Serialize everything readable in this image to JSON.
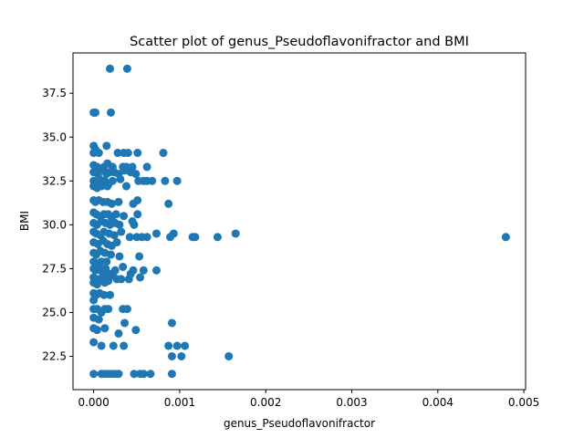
{
  "chart_data": {
    "type": "scatter",
    "title": "Scatter plot of genus_Pseudoflavonifractor and BMI",
    "xlabel": "genus_Pseudoflavonifractor",
    "ylabel": "BMI",
    "xlim": [
      -0.00024,
      0.00502
    ],
    "ylim": [
      20.6,
      39.8
    ],
    "x_ticks": [
      0.0,
      0.001,
      0.002,
      0.003,
      0.004,
      0.005
    ],
    "x_tick_labels": [
      "0.000",
      "0.001",
      "0.002",
      "0.003",
      "0.004",
      "0.005"
    ],
    "y_ticks": [
      22.5,
      25.0,
      27.5,
      30.0,
      32.5,
      35.0,
      37.5
    ],
    "y_tick_labels": [
      "22.5",
      "25.0",
      "27.5",
      "30.0",
      "32.5",
      "35.0",
      "37.5"
    ],
    "grid": false,
    "marker_color": "#1f77b4",
    "points": [
      [
        0.00019,
        38.9
      ],
      [
        0.00039,
        38.9
      ],
      [
        0.0,
        36.4
      ],
      [
        1e-05,
        36.4
      ],
      [
        2e-05,
        36.4
      ],
      [
        0.0002,
        36.4
      ],
      [
        0.0,
        34.5
      ],
      [
        2e-05,
        34.3
      ],
      [
        0.00015,
        34.5
      ],
      [
        0.0,
        34.1
      ],
      [
        6e-05,
        34.1
      ],
      [
        0.00028,
        34.1
      ],
      [
        0.00035,
        34.1
      ],
      [
        0.0004,
        34.1
      ],
      [
        0.00051,
        34.1
      ],
      [
        0.00081,
        34.1
      ],
      [
        0.0,
        33.4
      ],
      [
        4e-05,
        33.3
      ],
      [
        0.00012,
        33.3
      ],
      [
        0.00016,
        33.5
      ],
      [
        0.00022,
        33.3
      ],
      [
        0.00034,
        33.3
      ],
      [
        0.00038,
        33.3
      ],
      [
        0.00045,
        33.3
      ],
      [
        0.00062,
        33.3
      ],
      [
        0.0,
        33.0
      ],
      [
        5e-05,
        32.9
      ],
      [
        0.00011,
        33.1
      ],
      [
        0.00015,
        32.9
      ],
      [
        0.00019,
        33.0
      ],
      [
        0.00024,
        33.0
      ],
      [
        0.00029,
        32.9
      ],
      [
        0.00036,
        33.1
      ],
      [
        0.00043,
        33.0
      ],
      [
        0.00049,
        32.9
      ],
      [
        0.0,
        32.5
      ],
      [
        3e-05,
        32.4
      ],
      [
        7e-05,
        32.6
      ],
      [
        0.00013,
        32.5
      ],
      [
        0.00017,
        32.3
      ],
      [
        0.00022,
        32.5
      ],
      [
        0.00031,
        32.6
      ],
      [
        0.00038,
        32.2
      ],
      [
        0.00052,
        32.5
      ],
      [
        0.00058,
        32.5
      ],
      [
        0.00062,
        32.5
      ],
      [
        0.00068,
        32.5
      ],
      [
        0.00083,
        32.5
      ],
      [
        0.00097,
        32.5
      ],
      [
        0.0,
        32.2
      ],
      [
        4e-05,
        32.1
      ],
      [
        9e-05,
        32.2
      ],
      [
        0.00016,
        32.2
      ],
      [
        0.0,
        31.4
      ],
      [
        2e-05,
        31.3
      ],
      [
        6e-05,
        31.4
      ],
      [
        0.00011,
        31.3
      ],
      [
        0.00016,
        31.3
      ],
      [
        0.00021,
        31.2
      ],
      [
        0.00029,
        31.3
      ],
      [
        0.00046,
        31.2
      ],
      [
        0.00051,
        31.4
      ],
      [
        0.00087,
        31.2
      ],
      [
        0.0,
        30.7
      ],
      [
        3e-05,
        30.6
      ],
      [
        7e-05,
        30.5
      ],
      [
        0.00012,
        30.6
      ],
      [
        0.00017,
        30.6
      ],
      [
        0.00021,
        30.4
      ],
      [
        0.00026,
        30.6
      ],
      [
        0.00035,
        30.5
      ],
      [
        0.00051,
        30.6
      ],
      [
        0.0,
        30.1
      ],
      [
        4e-05,
        30.0
      ],
      [
        9e-05,
        30.2
      ],
      [
        0.00014,
        30.1
      ],
      [
        0.00019,
        30.0
      ],
      [
        0.00025,
        30.1
      ],
      [
        0.0003,
        30.0
      ],
      [
        0.00045,
        30.2
      ],
      [
        0.00047,
        30.0
      ],
      [
        0.0,
        29.6
      ],
      [
        3e-05,
        29.5
      ],
      [
        8e-05,
        29.4
      ],
      [
        0.00012,
        29.6
      ],
      [
        0.00018,
        29.5
      ],
      [
        0.00024,
        29.4
      ],
      [
        0.00032,
        29.6
      ],
      [
        0.00042,
        29.3
      ],
      [
        0.0005,
        29.3
      ],
      [
        0.00056,
        29.3
      ],
      [
        0.00062,
        29.3
      ],
      [
        0.00073,
        29.5
      ],
      [
        0.00089,
        29.3
      ],
      [
        0.00093,
        29.5
      ],
      [
        0.00115,
        29.3
      ],
      [
        0.00118,
        29.3
      ],
      [
        0.00144,
        29.3
      ],
      [
        0.00165,
        29.5
      ],
      [
        0.00479,
        29.3
      ],
      [
        0.0,
        29.0
      ],
      [
        5e-05,
        28.9
      ],
      [
        0.00011,
        29.1
      ],
      [
        0.00016,
        28.9
      ],
      [
        0.00021,
        28.8
      ],
      [
        0.00027,
        29.0
      ],
      [
        0.0,
        28.4
      ],
      [
        3e-05,
        28.3
      ],
      [
        8e-05,
        28.5
      ],
      [
        0.00013,
        28.4
      ],
      [
        0.0002,
        28.3
      ],
      [
        0.0003,
        28.2
      ],
      [
        0.00053,
        28.2
      ],
      [
        0.0,
        27.9
      ],
      [
        4e-05,
        27.8
      ],
      [
        9e-05,
        27.9
      ],
      [
        0.00015,
        27.9
      ],
      [
        0.0,
        27.5
      ],
      [
        2e-05,
        27.4
      ],
      [
        6e-05,
        27.6
      ],
      [
        0.0001,
        27.3
      ],
      [
        0.00014,
        27.5
      ],
      [
        0.00019,
        27.2
      ],
      [
        0.00025,
        27.4
      ],
      [
        0.00034,
        27.6
      ],
      [
        0.00043,
        27.2
      ],
      [
        0.00046,
        27.4
      ],
      [
        0.00058,
        27.4
      ],
      [
        0.00073,
        27.4
      ],
      [
        0.0,
        27.0
      ],
      [
        5e-05,
        26.9
      ],
      [
        0.00012,
        27.0
      ],
      [
        0.00017,
        26.8
      ],
      [
        0.00022,
        27.1
      ],
      [
        0.00027,
        26.9
      ],
      [
        0.00032,
        26.9
      ],
      [
        0.00041,
        26.9
      ],
      [
        0.00054,
        27.0
      ],
      [
        0.0,
        26.7
      ],
      [
        4e-05,
        26.6
      ],
      [
        0.00013,
        26.7
      ],
      [
        0.0,
        26.1
      ],
      [
        3e-05,
        26.0
      ],
      [
        7e-05,
        26.1
      ],
      [
        0.00012,
        26.0
      ],
      [
        0.00019,
        26.0
      ],
      [
        0.0,
        25.7
      ],
      [
        0.0,
        25.2
      ],
      [
        4e-05,
        25.2
      ],
      [
        9e-05,
        25.0
      ],
      [
        0.00013,
        25.2
      ],
      [
        0.00017,
        25.2
      ],
      [
        0.00034,
        25.2
      ],
      [
        0.00039,
        25.2
      ],
      [
        0.0,
        24.7
      ],
      [
        6e-05,
        24.6
      ],
      [
        0.0,
        24.1
      ],
      [
        4e-05,
        24.0
      ],
      [
        0.00013,
        24.1
      ],
      [
        0.00036,
        24.4
      ],
      [
        0.00049,
        24.0
      ],
      [
        0.00091,
        24.4
      ],
      [
        0.0,
        23.3
      ],
      [
        9e-05,
        23.1
      ],
      [
        0.00023,
        23.1
      ],
      [
        0.00029,
        23.8
      ],
      [
        0.00035,
        23.1
      ],
      [
        0.00087,
        23.1
      ],
      [
        0.00097,
        23.1
      ],
      [
        0.00106,
        23.1
      ],
      [
        0.00091,
        22.5
      ],
      [
        0.00102,
        22.5
      ],
      [
        0.00157,
        22.5
      ],
      [
        0.0,
        21.5
      ],
      [
        9e-05,
        21.5
      ],
      [
        0.00013,
        21.5
      ],
      [
        0.00017,
        21.5
      ],
      [
        0.00021,
        21.5
      ],
      [
        0.00025,
        21.5
      ],
      [
        0.00029,
        21.5
      ],
      [
        0.00047,
        21.5
      ],
      [
        0.00054,
        21.5
      ],
      [
        0.00058,
        21.5
      ],
      [
        0.00066,
        21.5
      ],
      [
        0.00091,
        21.5
      ]
    ]
  }
}
